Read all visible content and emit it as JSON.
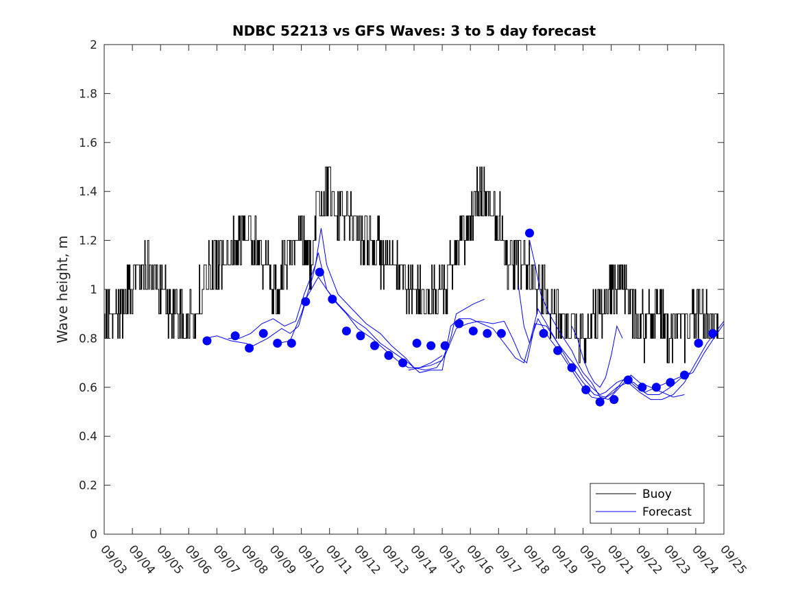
{
  "chart_data": {
    "type": "line",
    "title": "NDBC 52213 vs GFS Waves: 3 to 5 day forecast",
    "xlabel": "",
    "ylabel": "Wave height, m",
    "ylim": [
      0,
      2
    ],
    "yticks": [
      0,
      0.2,
      0.4,
      0.6,
      0.8,
      1,
      1.2,
      1.4,
      1.6,
      1.8,
      2
    ],
    "ytick_labels": [
      "0",
      "0.2",
      "0.4",
      "0.6",
      "0.8",
      "1",
      "1.2",
      "1.4",
      "1.6",
      "1.8",
      "2"
    ],
    "xlim_days": [
      0,
      22
    ],
    "xtick_labels": [
      "09/03",
      "09/04",
      "09/05",
      "09/06",
      "09/07",
      "09/08",
      "09/09",
      "09/10",
      "09/11",
      "09/12",
      "09/13",
      "09/14",
      "09/15",
      "09/16",
      "09/17",
      "09/18",
      "09/19",
      "09/20",
      "09/21",
      "09/22",
      "09/23",
      "09/24",
      "09/25"
    ],
    "legend": {
      "position": "bottom-right",
      "entries": [
        "Buoy",
        "Forecast"
      ]
    },
    "colors": {
      "buoy": "#000000",
      "forecast": "#0000ff"
    },
    "buoy_anchors": [
      [
        0.0,
        0.9
      ],
      [
        0.5,
        0.9
      ],
      [
        1.0,
        1.0
      ],
      [
        1.5,
        1.1
      ],
      [
        2.0,
        1.0
      ],
      [
        2.5,
        0.9
      ],
      [
        3.0,
        0.85
      ],
      [
        3.5,
        1.0
      ],
      [
        4.0,
        1.1
      ],
      [
        4.5,
        1.15
      ],
      [
        5.0,
        1.25
      ],
      [
        5.5,
        1.15
      ],
      [
        6.0,
        1.0
      ],
      [
        6.5,
        1.1
      ],
      [
        7.0,
        1.25
      ],
      [
        7.3,
        1.1
      ],
      [
        7.6,
        1.35
      ],
      [
        8.0,
        1.4
      ],
      [
        8.3,
        1.3
      ],
      [
        8.6,
        1.3
      ],
      [
        9.0,
        1.25
      ],
      [
        9.5,
        1.2
      ],
      [
        10.0,
        1.1
      ],
      [
        10.5,
        1.05
      ],
      [
        11.0,
        1.0
      ],
      [
        11.5,
        0.95
      ],
      [
        12.0,
        1.0
      ],
      [
        12.5,
        1.15
      ],
      [
        13.0,
        1.3
      ],
      [
        13.5,
        1.4
      ],
      [
        14.0,
        1.3
      ],
      [
        14.3,
        1.15
      ],
      [
        14.6,
        1.1
      ],
      [
        15.0,
        1.1
      ],
      [
        15.5,
        1.0
      ],
      [
        16.0,
        0.9
      ],
      [
        16.5,
        0.85
      ],
      [
        17.0,
        0.8
      ],
      [
        17.5,
        0.9
      ],
      [
        18.0,
        1.0
      ],
      [
        18.4,
        1.05
      ],
      [
        18.8,
        0.9
      ],
      [
        19.2,
        0.85
      ],
      [
        19.6,
        0.95
      ],
      [
        20.0,
        0.8
      ],
      [
        20.4,
        0.8
      ],
      [
        20.8,
        0.9
      ],
      [
        21.2,
        0.9
      ],
      [
        21.5,
        0.85
      ],
      [
        22.0,
        0.85
      ]
    ],
    "forecast_points": [
      {
        "day": 3.65,
        "value": 0.79
      },
      {
        "day": 4.65,
        "value": 0.81
      },
      {
        "day": 5.15,
        "value": 0.76
      },
      {
        "day": 5.65,
        "value": 0.82
      },
      {
        "day": 6.15,
        "value": 0.78
      },
      {
        "day": 6.65,
        "value": 0.78
      },
      {
        "day": 7.15,
        "value": 0.95
      },
      {
        "day": 7.65,
        "value": 1.07
      },
      {
        "day": 8.1,
        "value": 0.96
      },
      {
        "day": 8.6,
        "value": 0.83
      },
      {
        "day": 9.1,
        "value": 0.81
      },
      {
        "day": 9.6,
        "value": 0.77
      },
      {
        "day": 10.1,
        "value": 0.73
      },
      {
        "day": 10.6,
        "value": 0.7
      },
      {
        "day": 11.1,
        "value": 0.78
      },
      {
        "day": 11.6,
        "value": 0.77
      },
      {
        "day": 12.1,
        "value": 0.77
      },
      {
        "day": 12.6,
        "value": 0.86
      },
      {
        "day": 13.1,
        "value": 0.83
      },
      {
        "day": 13.6,
        "value": 0.82
      },
      {
        "day": 14.1,
        "value": 0.82
      },
      {
        "day": 15.1,
        "value": 1.23
      },
      {
        "day": 15.6,
        "value": 0.82
      },
      {
        "day": 16.1,
        "value": 0.75
      },
      {
        "day": 16.6,
        "value": 0.68
      },
      {
        "day": 17.1,
        "value": 0.59
      },
      {
        "day": 17.6,
        "value": 0.54
      },
      {
        "day": 18.1,
        "value": 0.55
      },
      {
        "day": 18.6,
        "value": 0.63
      },
      {
        "day": 19.1,
        "value": 0.6
      },
      {
        "day": 19.6,
        "value": 0.6
      },
      {
        "day": 20.1,
        "value": 0.62
      },
      {
        "day": 20.6,
        "value": 0.65
      },
      {
        "day": 21.1,
        "value": 0.78
      },
      {
        "day": 21.6,
        "value": 0.82
      }
    ],
    "forecast_lines": [
      [
        [
          3.6,
          0.8
        ],
        [
          4.0,
          0.81
        ],
        [
          4.5,
          0.79
        ],
        [
          5.0,
          0.78
        ],
        [
          5.3,
          0.77
        ],
        [
          5.8,
          0.8
        ],
        [
          6.3,
          0.84
        ],
        [
          6.6,
          0.82
        ],
        [
          6.9,
          0.85
        ],
        [
          7.2,
          0.97
        ],
        [
          7.6,
          1.05
        ],
        [
          7.9,
          1.0
        ],
        [
          8.2,
          0.95
        ],
        [
          8.6,
          0.9
        ],
        [
          9.0,
          0.84
        ],
        [
          9.5,
          0.8
        ],
        [
          10.0,
          0.75
        ],
        [
          10.4,
          0.71
        ],
        [
          10.8,
          0.68
        ],
        [
          11.2,
          0.68
        ],
        [
          11.6,
          0.7
        ],
        [
          12.0,
          0.73
        ]
      ],
      [
        [
          4.4,
          0.8
        ],
        [
          4.8,
          0.8
        ],
        [
          5.2,
          0.82
        ],
        [
          5.6,
          0.86
        ],
        [
          6.0,
          0.88
        ],
        [
          6.4,
          0.85
        ],
        [
          6.8,
          0.87
        ],
        [
          7.1,
          0.98
        ],
        [
          7.5,
          1.1
        ],
        [
          7.7,
          1.25
        ],
        [
          7.9,
          1.1
        ],
        [
          8.3,
          0.98
        ],
        [
          8.8,
          0.92
        ],
        [
          9.3,
          0.86
        ],
        [
          9.8,
          0.82
        ],
        [
          10.2,
          0.77
        ],
        [
          10.7,
          0.72
        ],
        [
          11.0,
          0.68
        ],
        [
          11.4,
          0.67
        ],
        [
          11.8,
          0.68
        ],
        [
          12.1,
          0.73
        ],
        [
          12.5,
          0.84
        ],
        [
          12.9,
          0.86
        ],
        [
          13.3,
          0.87
        ],
        [
          13.8,
          0.86
        ],
        [
          14.2,
          0.87
        ],
        [
          14.5,
          0.8
        ],
        [
          14.8,
          0.72
        ],
        [
          15.0,
          0.7
        ],
        [
          15.3,
          0.86
        ],
        [
          15.7,
          0.85
        ],
        [
          16.1,
          0.78
        ],
        [
          16.5,
          0.7
        ],
        [
          17.0,
          0.62
        ],
        [
          17.4,
          0.57
        ],
        [
          17.8,
          0.56
        ],
        [
          18.2,
          0.6
        ],
        [
          18.6,
          0.62
        ],
        [
          19.0,
          0.58
        ],
        [
          19.4,
          0.55
        ],
        [
          19.8,
          0.55
        ],
        [
          20.2,
          0.57
        ],
        [
          20.6,
          0.62
        ],
        [
          21.0,
          0.7
        ],
        [
          21.4,
          0.78
        ],
        [
          21.8,
          0.84
        ],
        [
          22.0,
          0.87
        ]
      ],
      [
        [
          6.2,
          0.78
        ],
        [
          6.6,
          0.79
        ],
        [
          7.0,
          0.9
        ],
        [
          7.4,
          1.05
        ],
        [
          7.6,
          1.15
        ],
        [
          7.9,
          1.0
        ],
        [
          8.3,
          0.94
        ],
        [
          8.8,
          0.88
        ],
        [
          9.3,
          0.84
        ],
        [
          9.8,
          0.78
        ],
        [
          10.3,
          0.74
        ],
        [
          10.8,
          0.7
        ],
        [
          11.2,
          0.66
        ],
        [
          11.6,
          0.67
        ],
        [
          12.0,
          0.67
        ],
        [
          12.3,
          0.85
        ],
        [
          12.6,
          0.88
        ],
        [
          13.0,
          0.88
        ],
        [
          13.4,
          0.86
        ],
        [
          13.8,
          0.84
        ],
        [
          14.2,
          0.78
        ],
        [
          14.6,
          0.72
        ],
        [
          14.9,
          0.7
        ],
        [
          15.1,
          0.78
        ],
        [
          15.4,
          0.88
        ],
        [
          15.8,
          0.8
        ],
        [
          16.2,
          0.74
        ],
        [
          16.6,
          0.67
        ],
        [
          17.0,
          0.6
        ],
        [
          17.3,
          0.56
        ],
        [
          17.7,
          0.55
        ],
        [
          18.1,
          0.58
        ],
        [
          18.5,
          0.64
        ],
        [
          18.9,
          0.6
        ],
        [
          19.3,
          0.57
        ],
        [
          19.7,
          0.57
        ],
        [
          20.1,
          0.6
        ],
        [
          20.5,
          0.64
        ],
        [
          20.9,
          0.66
        ],
        [
          21.3,
          0.74
        ],
        [
          21.7,
          0.81
        ],
        [
          22.0,
          0.86
        ]
      ],
      [
        [
          10.8,
          0.67
        ],
        [
          11.2,
          0.68
        ],
        [
          11.6,
          0.69
        ],
        [
          12.0,
          0.71
        ],
        [
          12.3,
          0.8
        ],
        [
          12.5,
          0.9
        ],
        [
          12.8,
          0.92
        ],
        [
          13.1,
          0.94
        ],
        [
          13.5,
          0.96
        ]
      ],
      [
        [
          15.1,
          1.2
        ],
        [
          15.3,
          1.1
        ],
        [
          15.5,
          0.98
        ],
        [
          15.8,
          0.9
        ],
        [
          16.2,
          0.82
        ],
        [
          16.6,
          0.75
        ],
        [
          16.8,
          0.7
        ],
        [
          17.0,
          0.66
        ],
        [
          17.3,
          0.62
        ],
        [
          17.6,
          0.56
        ],
        [
          17.9,
          0.55
        ],
        [
          18.3,
          0.6
        ],
        [
          18.7,
          0.65
        ],
        [
          19.0,
          0.62
        ],
        [
          19.4,
          0.6
        ],
        [
          19.8,
          0.58
        ],
        [
          20.2,
          0.56
        ],
        [
          20.6,
          0.57
        ]
      ],
      [
        [
          14.7,
          1.02
        ],
        [
          14.9,
          0.85
        ],
        [
          15.1,
          0.78
        ],
        [
          15.4,
          0.92
        ],
        [
          15.7,
          0.86
        ],
        [
          16.1,
          0.78
        ],
        [
          16.5,
          0.72
        ],
        [
          16.8,
          0.68
        ],
        [
          17.0,
          0.64
        ],
        [
          17.3,
          0.6
        ],
        [
          17.6,
          0.57
        ],
        [
          17.8,
          0.58
        ],
        [
          18.0,
          0.6
        ],
        [
          18.2,
          0.62
        ],
        [
          18.4,
          0.63
        ],
        [
          18.8,
          0.62
        ],
        [
          19.2,
          0.58
        ],
        [
          19.6,
          0.6
        ],
        [
          20.0,
          0.62
        ],
        [
          20.4,
          0.64
        ],
        [
          20.8,
          0.66
        ]
      ],
      [
        [
          16.6,
          0.85
        ],
        [
          16.8,
          0.8
        ],
        [
          17.0,
          0.72
        ],
        [
          17.2,
          0.66
        ],
        [
          17.4,
          0.62
        ],
        [
          17.6,
          0.6
        ],
        [
          17.8,
          0.64
        ],
        [
          18.0,
          0.73
        ],
        [
          18.2,
          0.85
        ],
        [
          18.4,
          0.8
        ]
      ]
    ]
  }
}
